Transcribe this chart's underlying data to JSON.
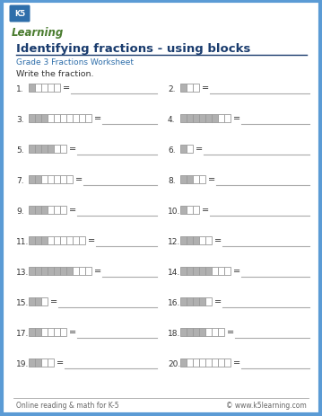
{
  "title": "Identifying fractions - using blocks",
  "subtitle": "Grade 3 Fractions Worksheet",
  "instruction": "Write the fraction.",
  "footer_left": "Online reading & math for K-5",
  "footer_right": "© www.k5learning.com",
  "border_color": "#5b9bd5",
  "background": "#ffffff",
  "problems": [
    {
      "num": 1,
      "total": 5,
      "shaded": 1,
      "col": 0
    },
    {
      "num": 2,
      "total": 3,
      "shaded": 1,
      "col": 1
    },
    {
      "num": 3,
      "total": 10,
      "shaded": 3,
      "col": 0
    },
    {
      "num": 4,
      "total": 8,
      "shaded": 6,
      "col": 1
    },
    {
      "num": 5,
      "total": 6,
      "shaded": 4,
      "col": 0
    },
    {
      "num": 6,
      "total": 2,
      "shaded": 1,
      "col": 1
    },
    {
      "num": 7,
      "total": 7,
      "shaded": 2,
      "col": 0
    },
    {
      "num": 8,
      "total": 4,
      "shaded": 2,
      "col": 1
    },
    {
      "num": 9,
      "total": 6,
      "shaded": 3,
      "col": 0
    },
    {
      "num": 10,
      "total": 3,
      "shaded": 1,
      "col": 1
    },
    {
      "num": 11,
      "total": 9,
      "shaded": 3,
      "col": 0
    },
    {
      "num": 12,
      "total": 5,
      "shaded": 3,
      "col": 1
    },
    {
      "num": 13,
      "total": 10,
      "shaded": 7,
      "col": 0
    },
    {
      "num": 14,
      "total": 8,
      "shaded": 5,
      "col": 1
    },
    {
      "num": 15,
      "total": 3,
      "shaded": 2,
      "col": 0
    },
    {
      "num": 16,
      "total": 5,
      "shaded": 4,
      "col": 1
    },
    {
      "num": 17,
      "total": 6,
      "shaded": 2,
      "col": 0
    },
    {
      "num": 18,
      "total": 7,
      "shaded": 4,
      "col": 1
    },
    {
      "num": 19,
      "total": 4,
      "shaded": 2,
      "col": 0
    },
    {
      "num": 20,
      "total": 8,
      "shaded": 1,
      "col": 1
    }
  ],
  "shaded_color": "#b0b0b0",
  "unshaded_color": "#ffffff",
  "block_outline": "#999999",
  "title_color": "#1a3c6e",
  "subtitle_color": "#2e6eaa",
  "text_color": "#333333",
  "footer_color": "#666666",
  "logo_bg": "#2e6eaa",
  "logo_green": "#4a7c2f"
}
